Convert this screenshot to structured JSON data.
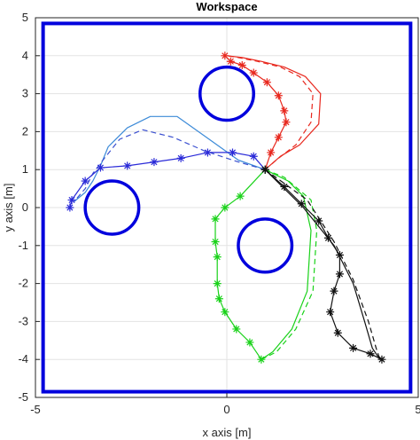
{
  "chart_data": {
    "type": "line",
    "title": "Workspace",
    "xlabel": "x axis [m]",
    "ylabel": "y axis [m]",
    "xlim": [
      -5,
      5
    ],
    "ylim": [
      -5,
      5
    ],
    "xticks": [
      -5,
      0,
      5
    ],
    "yticks": [
      5,
      4,
      3,
      2,
      1,
      0,
      -1,
      -2,
      -3,
      -4,
      -5
    ],
    "grid": true,
    "legend": "none",
    "colors": {
      "boundary": "#0000dd",
      "obstacle": "#0000dd",
      "red": "#e8281e",
      "blue_solid": "#3d8bd8",
      "blue_dashed": "#3b50d0",
      "blue_markers": "#2a2ad8",
      "green": "#19d219",
      "black": "#111111"
    },
    "workspace_boundary": {
      "xmin": -4.8,
      "xmax": 4.8,
      "ymin": -4.85,
      "ymax": 4.85
    },
    "obstacles": [
      {
        "cx": 0,
        "cy": 3,
        "r": 0.7
      },
      {
        "cx": -3,
        "cy": 0,
        "r": 0.7
      },
      {
        "cx": 1,
        "cy": -1,
        "r": 0.7
      }
    ],
    "series": [
      {
        "style": "solid-thin",
        "color": "red",
        "x": [
          0,
          0.5,
          0.95,
          1.5,
          2.2,
          4.0
        ],
        "y": [
          1,
          0.95,
          0.95,
          1.0,
          1.2,
          -4.0
        ]
      },
      {
        "style": "marker-line",
        "color": "red",
        "x": [
          1.0,
          1.15,
          1.35,
          1.55,
          1.5,
          1.35,
          1.05,
          0.7,
          0.4,
          0.1,
          -0.05
        ],
        "y": [
          1.0,
          1.45,
          1.85,
          2.25,
          2.55,
          2.95,
          3.3,
          3.55,
          3.75,
          3.85,
          4.0
        ]
      },
      {
        "style": "solid",
        "color": "red",
        "x": [
          1.0,
          1.4,
          1.9,
          2.4,
          2.45,
          2.05,
          1.5,
          0.9,
          0.4,
          0.0
        ],
        "y": [
          1.0,
          1.35,
          1.65,
          2.2,
          3.0,
          3.45,
          3.7,
          3.85,
          3.95,
          4.0
        ]
      },
      {
        "style": "dashed",
        "color": "red",
        "x": [
          1.0,
          1.35,
          1.8,
          2.2,
          2.25,
          1.9,
          1.4,
          0.8,
          0.3,
          0.0
        ],
        "y": [
          1.0,
          1.3,
          1.65,
          2.25,
          3.0,
          3.45,
          3.7,
          3.85,
          3.95,
          4.0
        ]
      },
      {
        "style": "solid",
        "color": "blue_solid",
        "x": [
          1.0,
          0.3,
          -0.6,
          -1.3,
          -2.0,
          -2.6,
          -3.1,
          -3.3,
          -3.5,
          -3.7,
          -4.0
        ],
        "y": [
          1.0,
          1.25,
          1.9,
          2.4,
          2.4,
          2.1,
          1.6,
          1.1,
          0.7,
          0.4,
          0.15
        ]
      },
      {
        "style": "dashed",
        "color": "blue_dashed",
        "x": [
          1.0,
          0.3,
          -0.6,
          -1.4,
          -2.2,
          -2.8,
          -3.2,
          -3.5,
          -3.7,
          -4.0
        ],
        "y": [
          1.0,
          1.2,
          1.5,
          1.85,
          2.05,
          1.8,
          1.3,
          0.9,
          0.5,
          0.15
        ]
      },
      {
        "style": "marker-line",
        "color": "blue_markers",
        "x": [
          1.0,
          0.7,
          0.15,
          -0.5,
          -1.2,
          -1.9,
          -2.6,
          -3.3,
          -3.7,
          -4.05,
          -4.1
        ],
        "y": [
          1.0,
          1.35,
          1.45,
          1.45,
          1.3,
          1.2,
          1.1,
          1.05,
          0.7,
          0.2,
          0.0
        ]
      },
      {
        "style": "solid",
        "color": "green",
        "x": [
          1.0,
          1.6,
          2.0,
          2.2,
          2.1,
          1.7,
          1.2,
          0.9
        ],
        "y": [
          1.0,
          0.7,
          0.3,
          -0.6,
          -2.2,
          -3.2,
          -3.8,
          -4.0
        ]
      },
      {
        "style": "dashed",
        "color": "green",
        "x": [
          1.0,
          1.5,
          2.2,
          2.35,
          2.25,
          1.8,
          1.3,
          0.9
        ],
        "y": [
          1.0,
          0.8,
          0.2,
          -0.6,
          -2.2,
          -3.2,
          -3.8,
          -4.0
        ]
      },
      {
        "style": "marker-line",
        "color": "green",
        "x": [
          1.0,
          0.35,
          -0.05,
          -0.3,
          -0.3,
          -0.25,
          -0.25,
          -0.2,
          -0.05,
          0.25,
          0.6,
          0.9
        ],
        "y": [
          1.0,
          0.3,
          0.0,
          -0.3,
          -0.9,
          -1.3,
          -2.0,
          -2.4,
          -2.75,
          -3.2,
          -3.55,
          -4.0
        ]
      },
      {
        "style": "solid",
        "color": "black",
        "x": [
          1.0,
          2.0,
          2.8,
          3.3,
          3.6,
          3.8,
          4.0
        ],
        "y": [
          1.0,
          0.0,
          -1.0,
          -2.0,
          -3.0,
          -3.7,
          -4.0
        ]
      },
      {
        "style": "dashed",
        "color": "black",
        "x": [
          1.0,
          2.1,
          2.8,
          3.3,
          3.7,
          3.9,
          4.0
        ],
        "y": [
          1.0,
          0.2,
          -0.9,
          -1.9,
          -3.0,
          -3.7,
          -4.0
        ]
      },
      {
        "style": "marker-line",
        "color": "black",
        "x": [
          1.0,
          1.5,
          1.95,
          2.4,
          2.65,
          2.95,
          2.95,
          2.8,
          2.7,
          2.9,
          3.3,
          3.75,
          4.05
        ],
        "y": [
          1.0,
          0.55,
          0.1,
          -0.35,
          -0.8,
          -1.25,
          -1.75,
          -2.2,
          -2.75,
          -3.3,
          -3.7,
          -3.85,
          -4.0
        ]
      }
    ]
  }
}
